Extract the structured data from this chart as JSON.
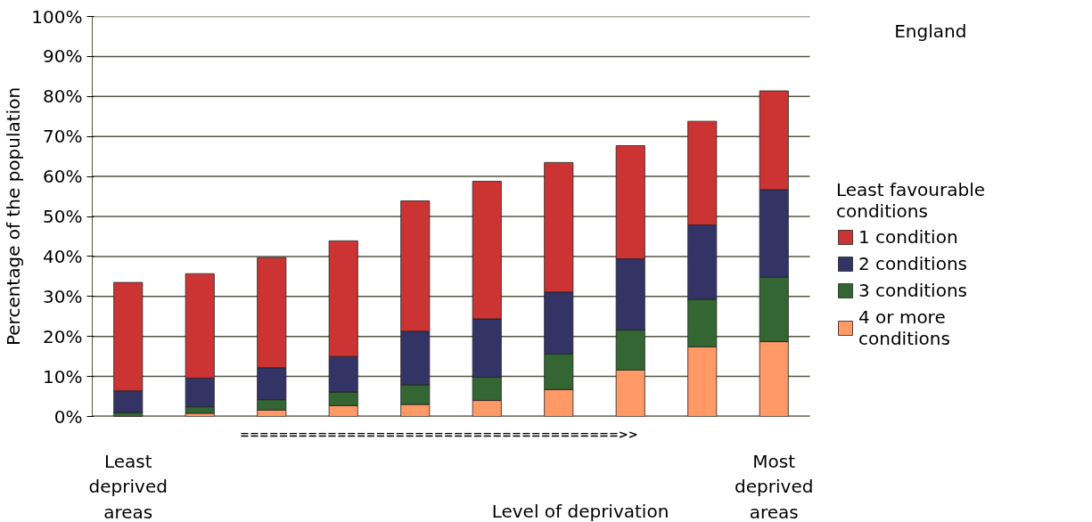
{
  "chart_data": {
    "type": "bar",
    "stacked": true,
    "ylabel": "Percentage of the population",
    "xlabel": "Level of deprivation",
    "legend_title": "Least favourable conditions",
    "legend": "right",
    "grid": "y",
    "categories": [
      "Least deprived areas",
      null,
      null,
      null,
      null,
      null,
      null,
      null,
      null,
      "Most deprived areas"
    ],
    "series": [
      {
        "name": "4 or more conditions",
        "color": "#ff9966",
        "values": [
          null,
          0.8,
          1.6,
          2.7,
          3.0,
          4.0,
          6.7,
          11.6,
          17.4,
          18.7
        ]
      },
      {
        "name": "3 conditions",
        "color": "#336633",
        "values": [
          1.0,
          1.6,
          2.6,
          3.4,
          4.9,
          5.8,
          8.9,
          10.0,
          11.9,
          16.1
        ]
      },
      {
        "name": "2 conditions",
        "color": "#333366",
        "values": [
          5.4,
          7.2,
          8.0,
          8.9,
          13.4,
          14.6,
          15.5,
          17.8,
          18.6,
          21.9
        ]
      },
      {
        "name": "1 condition",
        "color": "#cc3333",
        "values": [
          27.1,
          26.1,
          27.5,
          28.9,
          32.6,
          34.4,
          32.4,
          28.3,
          25.9,
          24.7
        ]
      }
    ],
    "ylim": [
      0,
      100
    ],
    "yticks": [
      {
        "value": 0,
        "label": "0%"
      },
      {
        "value": 10,
        "label": "10%"
      },
      {
        "value": 20,
        "label": "20%"
      },
      {
        "value": 30,
        "label": "30%"
      },
      {
        "value": 40,
        "label": "40%"
      },
      {
        "value": 50,
        "label": "50%"
      },
      {
        "value": 60,
        "label": "60%"
      },
      {
        "value": 70,
        "label": "70%"
      },
      {
        "value": 80,
        "label": "80%"
      },
      {
        "value": 90,
        "label": "90%"
      },
      {
        "value": 100,
        "label": "100%"
      }
    ],
    "annotations": [
      "England",
      "=======================================>>"
    ]
  }
}
